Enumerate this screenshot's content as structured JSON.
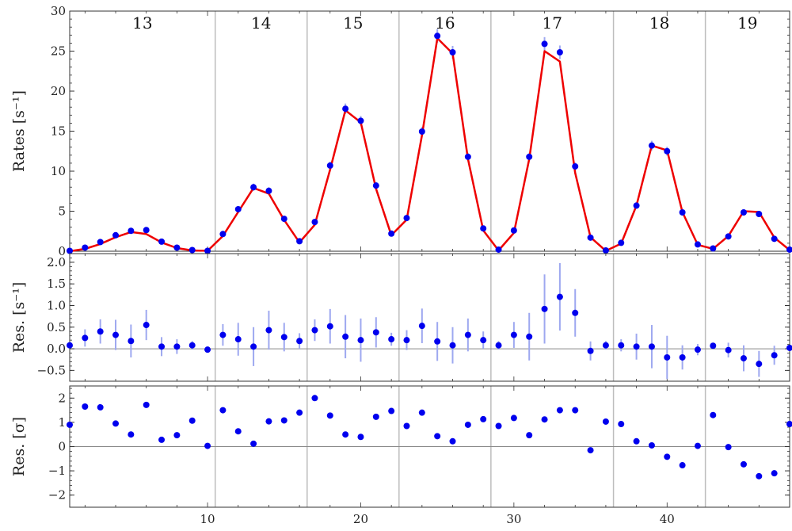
{
  "chart_data": [
    {
      "type": "scatter",
      "panel": "rates",
      "ylabel": "Rates [s⁻¹]",
      "ylim": [
        0,
        30
      ],
      "yticks": [
        0,
        5,
        10,
        15,
        20,
        25,
        30
      ],
      "xlim": [
        1,
        48
      ],
      "segments": [
        {
          "label": "13",
          "start": 1
        },
        {
          "label": "14",
          "start": 10.5
        },
        {
          "label": "15",
          "start": 16.5
        },
        {
          "label": "16",
          "start": 22.5
        },
        {
          "label": "17",
          "start": 28.5
        },
        {
          "label": "18",
          "start": 36.5
        },
        {
          "label": "19",
          "start": 42.5
        }
      ],
      "x": [
        1,
        2,
        3,
        4,
        5,
        6,
        7,
        8,
        9,
        10,
        11,
        12,
        13,
        14,
        15,
        16,
        17,
        18,
        19,
        20,
        21,
        22,
        23,
        24,
        25,
        26,
        27,
        28,
        29,
        30,
        31,
        32,
        33,
        34,
        35,
        36,
        37,
        38,
        39,
        40,
        41,
        42,
        43,
        44,
        45,
        46,
        47,
        48
      ],
      "data": [
        0.05,
        0.45,
        1.15,
        2.0,
        2.55,
        2.65,
        1.2,
        0.45,
        0.15,
        0.05,
        2.15,
        5.25,
        8.0,
        7.55,
        4.05,
        1.25,
        3.65,
        10.7,
        17.8,
        16.3,
        8.2,
        2.2,
        4.15,
        14.95,
        26.9,
        24.85,
        11.8,
        2.85,
        0.2,
        2.6,
        11.8,
        25.9,
        24.85,
        10.6,
        1.7,
        0.1,
        1.05,
        5.7,
        13.2,
        12.5,
        4.85,
        0.85,
        0.35,
        1.85,
        4.85,
        4.65,
        1.55,
        0.2
      ],
      "errors": [
        0.1,
        0.2,
        0.25,
        0.3,
        0.35,
        0.35,
        0.25,
        0.2,
        0.15,
        0.1,
        0.25,
        0.35,
        0.45,
        0.45,
        0.35,
        0.2,
        0.3,
        0.5,
        0.65,
        0.6,
        0.45,
        0.25,
        0.35,
        0.6,
        0.85,
        0.8,
        0.5,
        0.3,
        0.15,
        0.3,
        0.5,
        0.85,
        0.85,
        0.5,
        0.25,
        0.1,
        0.2,
        0.4,
        0.6,
        0.55,
        0.35,
        0.2,
        0.15,
        0.3,
        0.35,
        0.35,
        0.25,
        0.1
      ],
      "model": [
        0.0,
        0.3,
        0.9,
        1.75,
        2.4,
        2.15,
        1.1,
        0.4,
        0.1,
        0.05,
        1.9,
        4.9,
        7.9,
        7.2,
        3.9,
        1.1,
        3.3,
        10.2,
        17.6,
        16.1,
        7.8,
        2.0,
        3.95,
        14.5,
        26.6,
        24.7,
        11.5,
        2.6,
        0.1,
        2.3,
        11.5,
        25.0,
        23.7,
        9.8,
        1.75,
        0.05,
        0.95,
        5.7,
        13.2,
        12.6,
        4.9,
        0.8,
        0.3,
        1.9,
        5.0,
        4.9,
        1.7,
        0.15
      ]
    },
    {
      "type": "scatter",
      "panel": "residuals",
      "ylabel": "Res. [s⁻¹]",
      "ylim": [
        -0.75,
        2.2
      ],
      "yticks": [
        -0.5,
        0.0,
        0.5,
        1.0,
        1.5,
        2.0
      ],
      "ytick_labels": [
        "−0.5",
        "0.0",
        "0.5",
        "1.0",
        "1.5",
        "2.0"
      ],
      "x": [
        1,
        2,
        3,
        4,
        5,
        6,
        7,
        8,
        9,
        10,
        11,
        12,
        13,
        14,
        15,
        16,
        17,
        18,
        19,
        20,
        21,
        22,
        23,
        24,
        25,
        26,
        27,
        28,
        29,
        30,
        31,
        32,
        33,
        34,
        35,
        36,
        37,
        38,
        39,
        40,
        41,
        42,
        43,
        44,
        45,
        46,
        47,
        48
      ],
      "values": [
        0.08,
        0.25,
        0.4,
        0.32,
        0.18,
        0.55,
        0.05,
        0.05,
        0.08,
        -0.02,
        0.32,
        0.22,
        0.05,
        0.43,
        0.27,
        0.18,
        0.43,
        0.52,
        0.28,
        0.2,
        0.38,
        0.22,
        0.2,
        0.53,
        0.17,
        0.08,
        0.32,
        0.2,
        0.08,
        0.32,
        0.28,
        0.92,
        1.2,
        0.83,
        -0.05,
        0.08,
        0.08,
        0.05,
        0.05,
        -0.2,
        -0.2,
        -0.02,
        0.07,
        -0.03,
        -0.22,
        -0.35,
        -0.15,
        0.02
      ],
      "errors": [
        0.05,
        0.2,
        0.28,
        0.35,
        0.38,
        0.35,
        0.22,
        0.17,
        0.1,
        0.05,
        0.25,
        0.38,
        0.45,
        0.45,
        0.33,
        0.18,
        0.25,
        0.4,
        0.5,
        0.5,
        0.35,
        0.15,
        0.23,
        0.4,
        0.45,
        0.42,
        0.38,
        0.2,
        0.1,
        0.3,
        0.55,
        0.8,
        0.78,
        0.55,
        0.22,
        0.1,
        0.14,
        0.3,
        0.5,
        0.5,
        0.28,
        0.13,
        0.06,
        0.17,
        0.3,
        0.3,
        0.22,
        0.05
      ]
    },
    {
      "type": "scatter",
      "panel": "normalized-residuals",
      "ylabel": "Res. [σ]",
      "ylim": [
        -2.5,
        2.5
      ],
      "yticks": [
        -2,
        -1,
        0,
        1,
        2
      ],
      "ytick_labels": [
        "−2",
        "−1",
        "0",
        "1",
        "2"
      ],
      "xlabel": "",
      "xticks": [
        10,
        20,
        30,
        40
      ],
      "x": [
        1,
        2,
        3,
        4,
        5,
        6,
        7,
        8,
        9,
        10,
        11,
        12,
        13,
        14,
        15,
        16,
        17,
        18,
        19,
        20,
        21,
        22,
        23,
        24,
        25,
        26,
        27,
        28,
        29,
        30,
        31,
        32,
        33,
        34,
        35,
        36,
        37,
        38,
        39,
        40,
        41,
        42,
        43,
        44,
        45,
        46,
        47,
        48
      ],
      "values": [
        0.9,
        1.65,
        1.62,
        0.95,
        0.5,
        1.72,
        0.28,
        0.47,
        1.07,
        0.03,
        1.5,
        0.63,
        0.12,
        1.04,
        1.08,
        1.4,
        2.0,
        1.28,
        0.5,
        0.4,
        1.23,
        1.47,
        0.85,
        1.4,
        0.43,
        0.22,
        0.9,
        1.13,
        0.85,
        1.18,
        0.47,
        1.12,
        1.5,
        1.5,
        -0.15,
        1.03,
        0.93,
        0.22,
        0.05,
        -0.42,
        -0.77,
        0.03,
        1.3,
        -0.02,
        -0.73,
        -1.22,
        -1.1,
        0.93
      ]
    }
  ],
  "colors": {
    "points": "#0000ee",
    "errorbars": "#9ea8f0",
    "model": "#ee0000",
    "divider": "#bdbdbd",
    "zero": "#888888",
    "frame": "#333333"
  }
}
